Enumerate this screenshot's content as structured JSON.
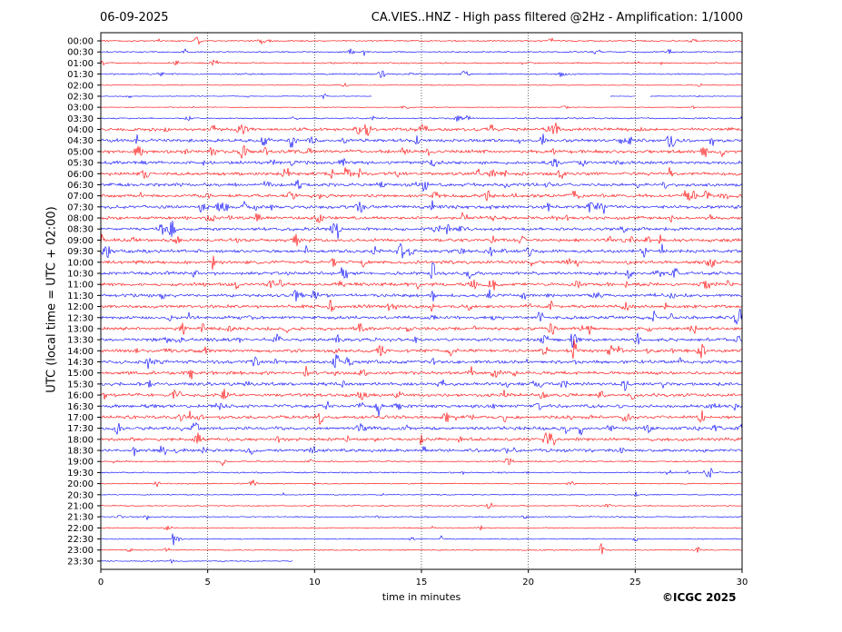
{
  "header": {
    "date": "06-09-2025",
    "title": "CA.VIES..HNZ - High pass filtered @2Hz - Amplification: 1/1000"
  },
  "credit": "©ICGC 2025",
  "chart_data": {
    "type": "line",
    "xlabel": "time in minutes",
    "ylabel": "UTC (local time = UTC + 02:00)",
    "xlim": [
      0,
      30
    ],
    "x_ticks": [
      "0",
      "5",
      "10",
      "15",
      "20",
      "25",
      "30"
    ],
    "x_tick_values": [
      0,
      5,
      10,
      15,
      20,
      25,
      30
    ],
    "grid": "vertical dotted lines every 5 minutes",
    "row_labels": [
      "00:00",
      "00:30",
      "01:00",
      "01:30",
      "02:00",
      "02:30",
      "03:00",
      "03:30",
      "04:00",
      "04:30",
      "05:00",
      "05:30",
      "06:00",
      "06:30",
      "07:00",
      "07:30",
      "08:00",
      "08:30",
      "09:00",
      "09:30",
      "10:00",
      "10:30",
      "11:00",
      "11:30",
      "12:00",
      "12:30",
      "13:00",
      "13:30",
      "14:00",
      "14:30",
      "15:00",
      "15:30",
      "16:00",
      "16:30",
      "17:00",
      "17:30",
      "18:00",
      "18:30",
      "19:00",
      "19:30",
      "20:00",
      "20:30",
      "21:00",
      "21:30",
      "22:00",
      "22:30",
      "23:00",
      "23:30"
    ],
    "series_colors": [
      "#ff0000",
      "#0000ff"
    ],
    "gaps": [
      {
        "row": "02:30",
        "from_min": 12.7,
        "to_min": 23.8
      },
      {
        "row": "02:30",
        "from_min": 25.0,
        "to_min": 25.7
      },
      {
        "row": "23:30",
        "from_min": 9.0,
        "to_min": 30
      }
    ],
    "events": [
      {
        "row": "13:30",
        "minute": 22.0,
        "amplitude": "very large"
      },
      {
        "row": "14:00",
        "minute": 22.1,
        "amplitude": "very large"
      },
      {
        "row": "22:30",
        "minute": 3.4,
        "amplitude": "large"
      },
      {
        "row": "23:00",
        "minute": 23.4,
        "amplitude": "large"
      },
      {
        "row": "07:30",
        "minute": 4.6,
        "amplitude": "large"
      },
      {
        "row": "03:30",
        "minute": 30.0,
        "amplitude": "large"
      }
    ]
  }
}
